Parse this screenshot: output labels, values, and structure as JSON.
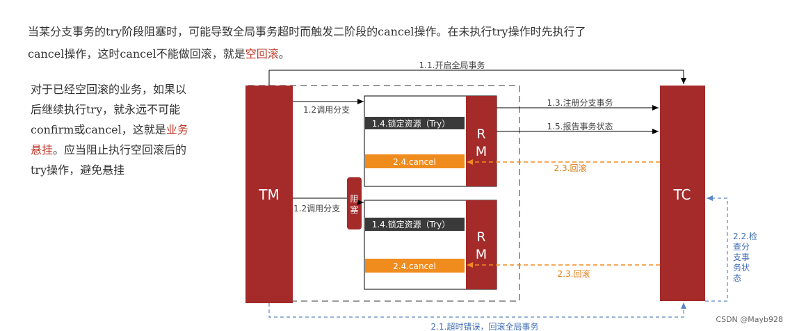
{
  "intro": {
    "line1": "当某分支事务的try阶段阻塞时，可能导致全局事务超时而触发二阶段的cancel操作。在未执行try操作时先执行了",
    "line2_prefix": "cancel操作，这时cancel不能做回滚，就是",
    "line2_term": "空回滚",
    "line2_suffix": "。"
  },
  "side_text": {
    "l1": "对于已经空回滚的业务，如果以",
    "l2": "后继续执行try，就永远不可能",
    "l3_prefix": "confirm或cancel，这就是",
    "l3_term": "业务",
    "l4_term": "悬挂",
    "l4_suffix": "。应当阻止执行空回滚后的",
    "l5": "try操作，避免悬挂"
  },
  "diagram": {
    "tm_label": "TM",
    "tc_label": "TC",
    "rm_label_1": "R",
    "rm_label_2": "M",
    "block_label_1": "阻",
    "block_label_2": "塞",
    "lock_label": "1.4.锁定资源（Try）",
    "cancel_label": "2.4.cancel",
    "arrow_open_global": "1.1.开启全局事务",
    "arrow_call_branch": "1.2调用分支",
    "arrow_register_branch": "1.3.注册分支事务",
    "arrow_report_status": "1.5.报告事务状态",
    "arrow_rollback": "2.3.回滚",
    "arrow_timeout": "2.1.超时错误，回滚全局事务",
    "check_lines": [
      "2.2.检",
      "查分",
      "支事",
      "务状",
      "态"
    ]
  },
  "watermark": "CSDN @Mayb928",
  "colors": {
    "dark_red": "#a52a2a",
    "dark_box": "#3a3a3a",
    "orange": "#f08c1e",
    "blue_dashed": "#5b86c5",
    "gray_dashed": "#9a9a9a",
    "text_red": "#c0392b"
  }
}
